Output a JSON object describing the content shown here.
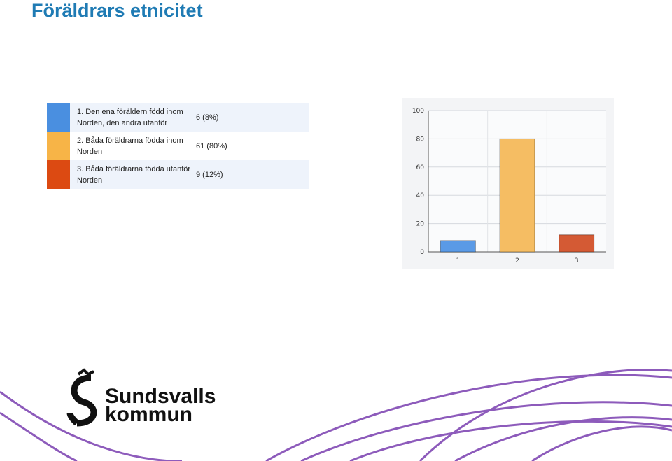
{
  "header": {
    "title": "Föräldrars etnicitet"
  },
  "table": {
    "rows": [
      {
        "label": "1. Den ena föräldern född inom Norden, den andra utanför",
        "count": "6 (8%)",
        "color": "#4a8fe0"
      },
      {
        "label": "2. Båda föräldrarna födda inom Norden",
        "count": "61 (80%)",
        "color": "#f7b447"
      },
      {
        "label": "3. Båda föräldrarna födda utanför Norden",
        "count": "9 (12%)",
        "color": "#dc4a12"
      }
    ]
  },
  "chart_data": {
    "type": "bar",
    "categories": [
      "1",
      "2",
      "3"
    ],
    "values": [
      8,
      80,
      12
    ],
    "colors": [
      "#5a9ae6",
      "#f5bd63",
      "#d45a34"
    ],
    "ylim": [
      0,
      100
    ],
    "yticks": [
      0,
      20,
      40,
      60,
      80,
      100
    ],
    "grid": true
  },
  "logo": {
    "line1": "Sundsvalls",
    "line2": "kommun"
  }
}
